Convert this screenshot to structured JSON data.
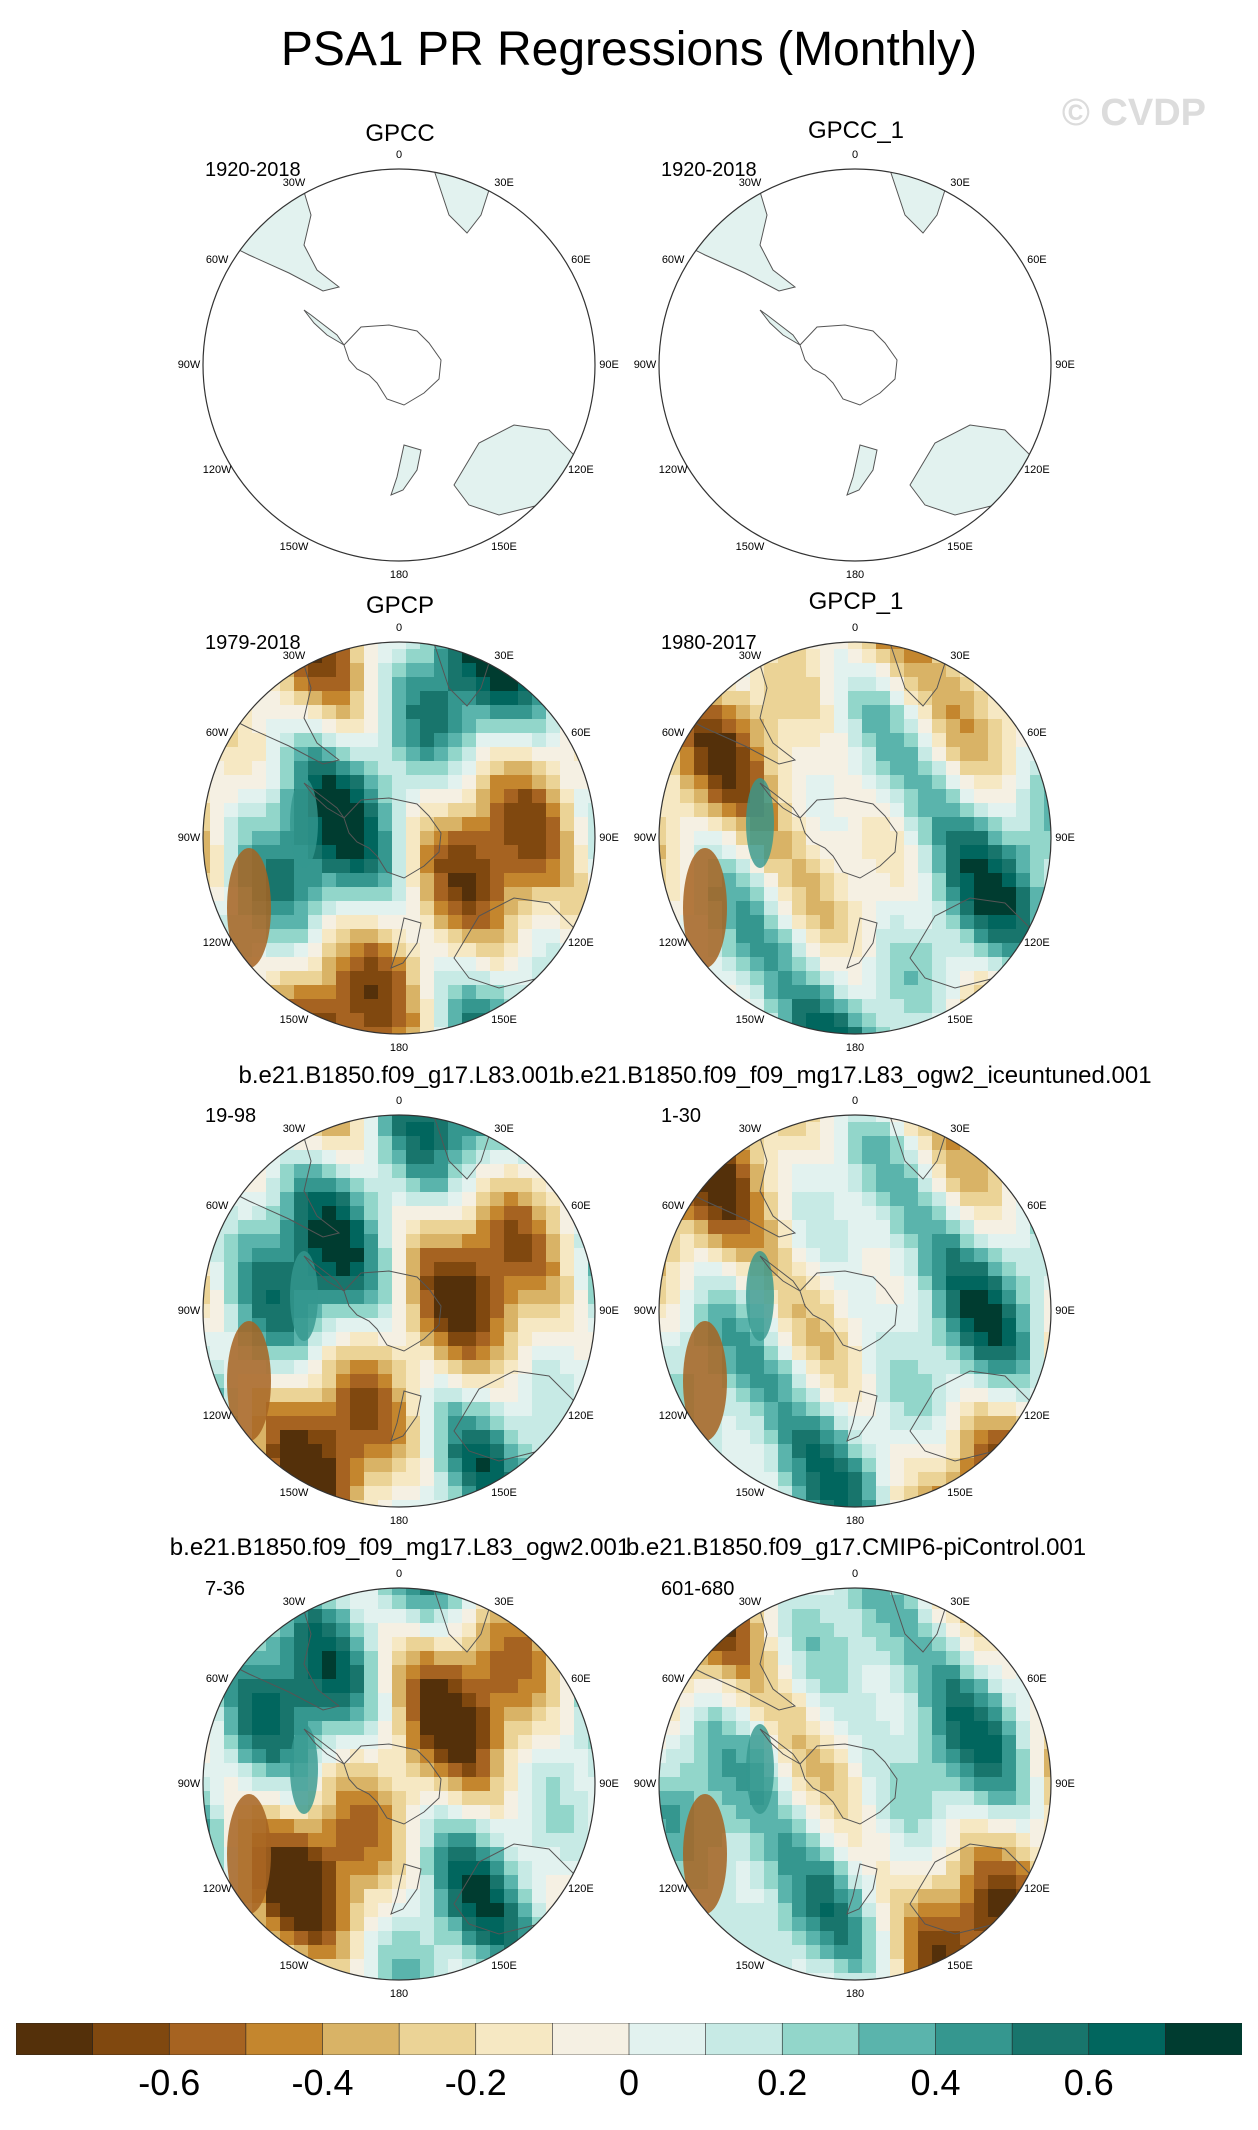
{
  "chart_data": {
    "type": "heatmap",
    "title": "PSA1 PR Regressions (Monthly)",
    "projection": "south polar stereographic",
    "longitude_labels": [
      "0",
      "30E",
      "60E",
      "90E",
      "120E",
      "150E",
      "180",
      "150W",
      "120W",
      "90W",
      "60W",
      "30W"
    ],
    "colorbar": {
      "ticks": [
        "-0.6",
        "-0.4",
        "-0.2",
        "0",
        "0.2",
        "0.4",
        "0.6"
      ],
      "colors": [
        "#54300a",
        "#80480f",
        "#a66321",
        "#c4862e",
        "#d9b366",
        "#ebd396",
        "#f6e8c3",
        "#f5f0e3",
        "#e2f2ef",
        "#c7eae5",
        "#92d6ca",
        "#5ab4ac",
        "#35978f",
        "#18756c",
        "#01665e",
        "#003c30"
      ]
    },
    "panels": [
      {
        "name": "GPCC",
        "period": "1920-2018",
        "coverage": "land"
      },
      {
        "name": "GPCC_1",
        "period": "1920-2018",
        "coverage": "land"
      },
      {
        "name": "GPCP",
        "period": "1979-2018",
        "coverage": "full"
      },
      {
        "name": "GPCP_1",
        "period": "1980-2017",
        "coverage": "full"
      },
      {
        "name": "b.e21.B1850.f09_g17.L83.001",
        "period": "19-98",
        "coverage": "full"
      },
      {
        "name": "b.e21.B1850.f09_f09_mg17.L83_ogw2_iceuntuned.001",
        "period": "1-30",
        "coverage": "full"
      },
      {
        "name": "b.e21.B1850.f09_f09_mg17.L83_ogw2.001",
        "period": "7-36",
        "coverage": "full"
      },
      {
        "name": "b.e21.B1850.f09_g17.CMIP6-piControl.001",
        "period": "601-680",
        "coverage": "full"
      }
    ]
  },
  "watermark": "© CVDP"
}
